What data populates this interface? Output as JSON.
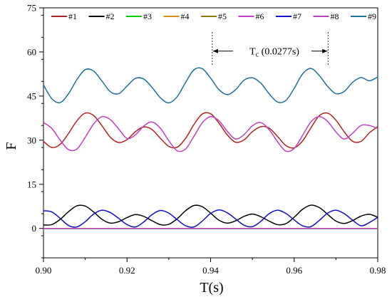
{
  "chart_data": {
    "type": "line",
    "title": "",
    "xlabel": "T(s)",
    "ylabel": "F",
    "xlim": [
      0.9,
      0.98
    ],
    "ylim": [
      -10,
      75
    ],
    "xticks": [
      0.9,
      0.92,
      0.94,
      0.96,
      0.98
    ],
    "xtick_labels": [
      "0.90",
      "0.92",
      "0.94",
      "0.96",
      "0.98"
    ],
    "yticks": [
      0,
      15,
      30,
      45,
      60,
      75
    ],
    "ytick_labels": [
      "0",
      "15",
      "30",
      "45",
      "60",
      "75"
    ],
    "grid": false,
    "legend": {
      "placement": "top",
      "orientation": "horizontal"
    },
    "x": [
      0.9,
      0.902,
      0.904,
      0.906,
      0.908,
      0.91,
      0.912,
      0.914,
      0.916,
      0.918,
      0.92,
      0.922,
      0.924,
      0.926,
      0.928,
      0.93,
      0.932,
      0.934,
      0.936,
      0.938,
      0.94,
      0.942,
      0.944,
      0.946,
      0.948,
      0.95,
      0.952,
      0.954,
      0.956,
      0.958,
      0.96,
      0.962,
      0.964,
      0.966,
      0.968,
      0.97,
      0.972,
      0.974,
      0.976,
      0.978,
      0.98
    ],
    "series": [
      {
        "name": "#1",
        "color": "#b22222",
        "values": [
          29.6,
          27.5,
          28.6,
          32.3,
          36.6,
          39.2,
          38.4,
          34.9,
          31.0,
          29.2,
          30.2,
          32.9,
          34.5,
          33.6,
          30.6,
          27.9,
          27.6,
          30.6,
          35.3,
          38.9,
          39.0,
          35.8,
          31.8,
          29.3,
          30.1,
          32.9,
          34.6,
          34.1,
          31.3,
          28.2,
          27.4,
          29.7,
          34.2,
          38.3,
          39.2,
          36.8,
          32.8,
          29.6,
          29.6,
          32.5,
          34.6
        ]
      },
      {
        "name": "#2",
        "color": "#000000",
        "values": [
          1.2,
          1.3,
          3.1,
          5.7,
          7.7,
          7.6,
          5.6,
          3.1,
          1.8,
          2.3,
          3.7,
          4.7,
          4.1,
          2.6,
          1.3,
          1.4,
          3.3,
          6.0,
          7.8,
          7.4,
          5.2,
          2.8,
          1.8,
          2.6,
          4.1,
          4.9,
          4.0,
          2.5,
          1.3,
          1.6,
          3.8,
          6.5,
          7.9,
          7.1,
          4.8,
          2.5,
          1.7,
          2.7,
          4.2,
          4.8,
          3.8
        ]
      },
      {
        "name": "#3",
        "color": "#00cc00",
        "values": [
          -0.1,
          -0.1,
          -0.1,
          -0.1,
          -0.1,
          -0.1,
          -0.1,
          -0.1,
          -0.1,
          -0.1,
          -0.1,
          -0.1,
          -0.1,
          -0.1,
          -0.1,
          -0.1,
          -0.1,
          -0.1,
          -0.1,
          -0.1,
          -0.1,
          -0.1,
          -0.1,
          -0.1,
          -0.1,
          -0.1,
          -0.1,
          -0.1,
          -0.1,
          -0.1,
          -0.1,
          -0.1,
          -0.1,
          -0.1,
          -0.1,
          -0.1,
          -0.1,
          -0.1,
          -0.1,
          -0.1,
          -0.1
        ]
      },
      {
        "name": "#4",
        "color": "#d98c1a",
        "values": [
          0,
          0,
          0,
          0,
          0,
          0,
          0,
          0,
          0,
          0,
          0,
          0,
          0,
          0,
          0,
          0,
          0,
          0,
          0,
          0,
          0,
          0,
          0,
          0,
          0,
          0,
          0,
          0,
          0,
          0,
          0,
          0,
          0,
          0,
          0,
          0,
          0,
          0,
          0,
          0,
          0
        ]
      },
      {
        "name": "#5",
        "color": "#8b7d00",
        "values": [
          0,
          0,
          0,
          0,
          0,
          0,
          0,
          0,
          0,
          0,
          0,
          0,
          0,
          0,
          0,
          0,
          0,
          0,
          0,
          0,
          0,
          0,
          0,
          0,
          0,
          0,
          0,
          0,
          0,
          0,
          0,
          0,
          0,
          0,
          0,
          0,
          0,
          0,
          0,
          0,
          0
        ]
      },
      {
        "name": "#6",
        "color": "#d040d0",
        "values": [
          0,
          0,
          0,
          0,
          0,
          0,
          0,
          0,
          0,
          0,
          0,
          0,
          0,
          0,
          0,
          0,
          0,
          0,
          0,
          0,
          0,
          0,
          0,
          0,
          0,
          0,
          0,
          0,
          0,
          0,
          0,
          0,
          0,
          0,
          0,
          0,
          0,
          0,
          0,
          0,
          0
        ]
      },
      {
        "name": "#7",
        "color": "#1010cc",
        "values": [
          6.0,
          5.6,
          3.4,
          1.0,
          0.5,
          2.3,
          4.9,
          6.2,
          5.4,
          3.4,
          1.3,
          0.5,
          2.2,
          4.7,
          6.1,
          5.2,
          3.0,
          0.9,
          0.5,
          2.5,
          5.1,
          6.3,
          5.3,
          3.2,
          1.1,
          0.6,
          2.4,
          5.0,
          6.2,
          5.1,
          2.9,
          0.9,
          0.6,
          2.7,
          5.2,
          6.2,
          5.0,
          2.8,
          0.9,
          2.0,
          3.8
        ]
      },
      {
        "name": "#8",
        "color": "#c040c0",
        "values": [
          36.0,
          34.0,
          30.0,
          26.8,
          27.0,
          31.0,
          35.5,
          38.0,
          37.0,
          33.8,
          30.6,
          31.8,
          34.8,
          36.2,
          34.0,
          29.8,
          26.4,
          27.0,
          31.3,
          35.9,
          38.0,
          36.6,
          33.0,
          30.4,
          31.9,
          34.9,
          36.0,
          33.6,
          29.5,
          26.3,
          27.2,
          31.6,
          36.2,
          38.0,
          36.4,
          32.8,
          30.4,
          32.4,
          35.0,
          35.0,
          34.0
        ]
      },
      {
        "name": "#9",
        "color": "#1f6f99",
        "values": [
          48.8,
          44.1,
          42.8,
          45.8,
          50.6,
          54.0,
          53.5,
          50.1,
          46.5,
          45.8,
          48.4,
          51.0,
          50.8,
          47.9,
          44.4,
          42.7,
          44.8,
          49.6,
          53.9,
          54.3,
          51.1,
          47.2,
          45.5,
          47.2,
          50.4,
          51.2,
          49.4,
          45.8,
          43.0,
          43.5,
          47.6,
          52.5,
          54.4,
          52.0,
          48.3,
          45.8,
          46.6,
          49.7,
          51.3,
          50.2,
          51.5
        ]
      }
    ],
    "annotations": [
      {
        "type": "period",
        "text": "Tc (0.0277s)",
        "label_main": "T",
        "label_sub": "c",
        "label_rest": " (0.0277s)",
        "x_start": 0.9404,
        "x_end": 0.9681,
        "y": 60.3
      }
    ]
  }
}
